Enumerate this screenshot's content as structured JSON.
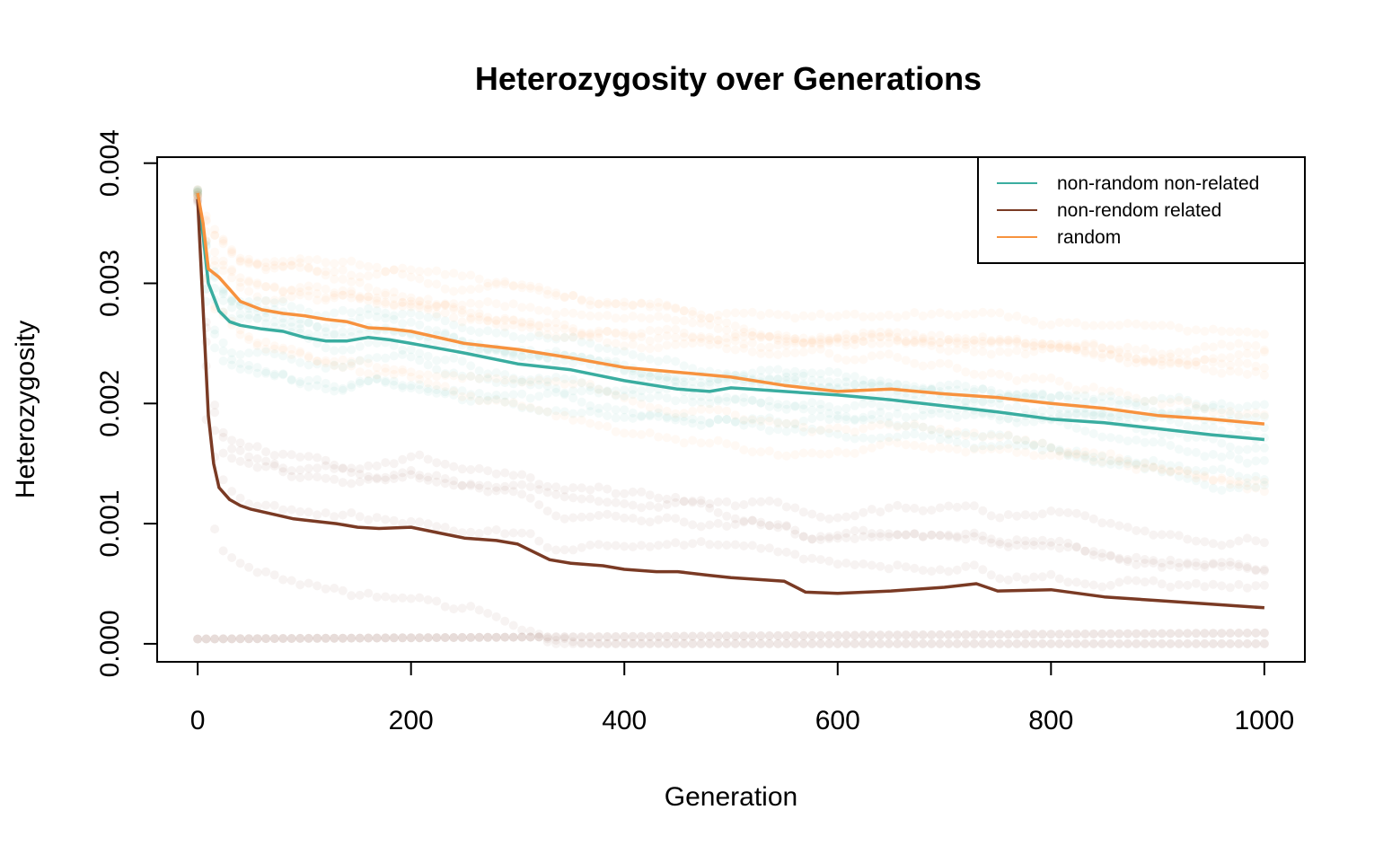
{
  "chart_data": {
    "type": "line",
    "title": "Heterozygosity over Generations",
    "xlabel": "Generation",
    "ylabel": "Heterozygosity",
    "xlim": [
      -38,
      1038
    ],
    "ylim": [
      -0.00015,
      0.00405
    ],
    "x_ticks": [
      0,
      200,
      400,
      600,
      800,
      1000
    ],
    "x_tick_labels": [
      "0",
      "200",
      "400",
      "600",
      "800",
      "1000"
    ],
    "y_ticks": [
      0,
      0.001,
      0.002,
      0.003,
      0.004
    ],
    "y_tick_labels": [
      "0.000",
      "0.001",
      "0.002",
      "0.003",
      "0.004"
    ],
    "grid": false,
    "legend_position": "top-right",
    "background_replicates": "many faint semi-transparent point traces of individual simulation replicates behind the mean lines",
    "series": [
      {
        "name": "non-random non-related",
        "color": "#3aada0",
        "x": [
          0,
          5,
          10,
          20,
          30,
          40,
          60,
          80,
          100,
          120,
          140,
          160,
          180,
          200,
          250,
          300,
          350,
          400,
          450,
          480,
          500,
          550,
          600,
          650,
          700,
          750,
          800,
          850,
          900,
          950,
          1000
        ],
        "y": [
          0.00375,
          0.0034,
          0.003,
          0.00277,
          0.00268,
          0.00265,
          0.00262,
          0.0026,
          0.00255,
          0.00252,
          0.00252,
          0.00255,
          0.00253,
          0.0025,
          0.00242,
          0.00233,
          0.00228,
          0.00219,
          0.00212,
          0.0021,
          0.00213,
          0.0021,
          0.00207,
          0.00203,
          0.00198,
          0.00193,
          0.00187,
          0.00184,
          0.00179,
          0.00174,
          0.0017
        ]
      },
      {
        "name": "non-rendom related",
        "color": "#7a3a24",
        "x": [
          0,
          5,
          10,
          15,
          20,
          25,
          30,
          40,
          50,
          70,
          90,
          100,
          130,
          150,
          170,
          200,
          250,
          280,
          300,
          330,
          350,
          380,
          400,
          430,
          450,
          480,
          500,
          550,
          570,
          600,
          650,
          700,
          730,
          750,
          800,
          850,
          900,
          950,
          1000
        ],
        "y": [
          0.0037,
          0.0028,
          0.0019,
          0.0015,
          0.0013,
          0.00125,
          0.0012,
          0.00115,
          0.00112,
          0.00108,
          0.00104,
          0.00103,
          0.001,
          0.00097,
          0.00096,
          0.00097,
          0.00088,
          0.00086,
          0.00083,
          0.0007,
          0.00067,
          0.00065,
          0.00062,
          0.0006,
          0.0006,
          0.00057,
          0.00055,
          0.00052,
          0.00043,
          0.00042,
          0.00044,
          0.00047,
          0.0005,
          0.00044,
          0.00045,
          0.00039,
          0.00036,
          0.00033,
          0.0003
        ]
      },
      {
        "name": "random",
        "color": "#f7923e",
        "x": [
          0,
          5,
          10,
          20,
          30,
          40,
          60,
          80,
          100,
          120,
          140,
          160,
          180,
          200,
          250,
          300,
          350,
          400,
          450,
          500,
          550,
          600,
          650,
          700,
          750,
          800,
          850,
          900,
          950,
          1000
        ],
        "y": [
          0.00375,
          0.0035,
          0.00312,
          0.00305,
          0.00295,
          0.00285,
          0.00278,
          0.00275,
          0.00273,
          0.0027,
          0.00268,
          0.00263,
          0.00262,
          0.0026,
          0.0025,
          0.00245,
          0.00238,
          0.0023,
          0.00226,
          0.00222,
          0.00215,
          0.0021,
          0.00212,
          0.00208,
          0.00205,
          0.002,
          0.00196,
          0.0019,
          0.00187,
          0.00183
        ]
      }
    ]
  }
}
